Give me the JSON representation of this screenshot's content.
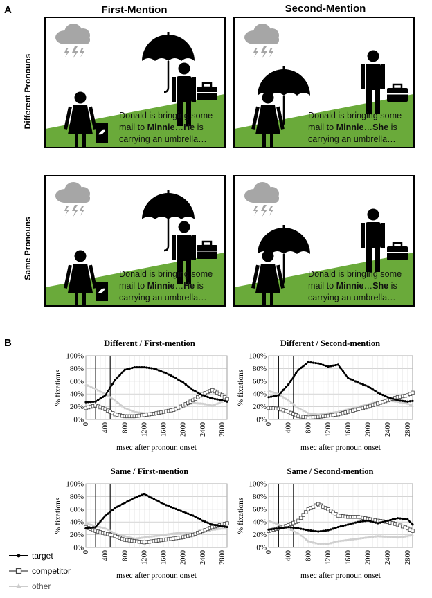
{
  "panels": {
    "a": "A",
    "b": "B"
  },
  "columns": [
    "First-Mention",
    "Second-Mention"
  ],
  "rows": [
    "Different Pronouns",
    "Same Pronouns"
  ],
  "scenes": [
    {
      "id": "diff-first",
      "pre": "Donald is bringing some mail to ",
      "name": "Minnie",
      "dots": "…",
      "pronoun": "He",
      "post": " is carrying an umbrella…",
      "umbrella": "man"
    },
    {
      "id": "diff-second",
      "pre": "Donald is bringing some mail to ",
      "name": "Minnie",
      "dots": "…",
      "pronoun": "She",
      "post": " is carrying an umbrella…",
      "umbrella": "woman"
    },
    {
      "id": "same-first",
      "pre": "Donald is bringing some mail to ",
      "name": "Minnie",
      "dots": "…",
      "pronoun": "He",
      "post": " is carrying an umbrella…",
      "umbrella": "man"
    },
    {
      "id": "same-second",
      "pre": "Donald is bringing some mail to ",
      "name": "Minnie",
      "dots": "…",
      "pronoun": "She",
      "post": " is carrying an umbrella…",
      "umbrella": "woman"
    }
  ],
  "colors": {
    "grass": "#6aaa3a",
    "cloud": "#a6a6a6",
    "target": "#000000",
    "competitor": "#555555",
    "other": "#cfcfcf"
  },
  "legend": [
    "target",
    "competitor",
    "other"
  ],
  "chart_data": [
    {
      "type": "line",
      "title": "Different / First-mention",
      "xlabel": "msec after pronoun onset",
      "ylabel": "% fixations",
      "xlim": [
        0,
        2900
      ],
      "ylim": [
        0,
        100
      ],
      "xticks": [
        0,
        400,
        800,
        1200,
        1600,
        2000,
        2400,
        2800
      ],
      "yticks": [
        "0%",
        "20%",
        "40%",
        "60%",
        "80%",
        "100%"
      ],
      "vlines": [
        200,
        500
      ],
      "series": [
        {
          "name": "target",
          "x": [
            0,
            200,
            400,
            600,
            800,
            1000,
            1200,
            1400,
            1600,
            1800,
            2000,
            2200,
            2400,
            2600,
            2800,
            2900
          ],
          "values": [
            27,
            28,
            38,
            62,
            78,
            82,
            82,
            80,
            74,
            67,
            58,
            46,
            38,
            33,
            30,
            28
          ]
        },
        {
          "name": "competitor",
          "x": [
            0,
            200,
            400,
            600,
            800,
            1000,
            1200,
            1400,
            1600,
            1800,
            2000,
            2200,
            2400,
            2600,
            2800,
            2900
          ],
          "values": [
            18,
            22,
            16,
            8,
            5,
            5,
            7,
            9,
            12,
            15,
            22,
            30,
            40,
            46,
            38,
            32
          ]
        },
        {
          "name": "other",
          "x": [
            0,
            200,
            400,
            600,
            800,
            1000,
            1200,
            1400,
            1600,
            1800,
            2000,
            2200,
            2400,
            2600,
            2800,
            2900
          ],
          "values": [
            55,
            48,
            40,
            30,
            18,
            12,
            10,
            10,
            12,
            16,
            22,
            26,
            25,
            22,
            28,
            36
          ]
        }
      ]
    },
    {
      "type": "line",
      "title": "Different / Second-mention",
      "xlabel": "msec after pronoun onset",
      "ylabel": "% fixations",
      "xlim": [
        0,
        2900
      ],
      "ylim": [
        0,
        100
      ],
      "xticks": [
        0,
        400,
        800,
        1200,
        1600,
        2000,
        2400,
        2800
      ],
      "yticks": [
        "0%",
        "20%",
        "40%",
        "60%",
        "80%",
        "100%"
      ],
      "vlines": [
        200,
        500
      ],
      "series": [
        {
          "name": "target",
          "x": [
            0,
            200,
            400,
            600,
            800,
            1000,
            1200,
            1400,
            1600,
            1800,
            2000,
            2200,
            2400,
            2600,
            2800,
            2900
          ],
          "values": [
            35,
            38,
            55,
            78,
            90,
            88,
            83,
            86,
            65,
            58,
            52,
            42,
            35,
            30,
            28,
            29
          ]
        },
        {
          "name": "competitor",
          "x": [
            0,
            200,
            400,
            600,
            800,
            1000,
            1200,
            1400,
            1600,
            1800,
            2000,
            2200,
            2400,
            2600,
            2800,
            2900
          ],
          "values": [
            18,
            17,
            12,
            5,
            3,
            4,
            6,
            8,
            12,
            16,
            20,
            25,
            30,
            35,
            38,
            42
          ]
        },
        {
          "name": "other",
          "x": [
            0,
            200,
            400,
            600,
            800,
            1000,
            1200,
            1400,
            1600,
            1800,
            2000,
            2200,
            2400,
            2600,
            2800,
            2900
          ],
          "values": [
            45,
            40,
            30,
            18,
            10,
            8,
            10,
            12,
            16,
            20,
            24,
            28,
            30,
            28,
            25,
            22
          ]
        }
      ]
    },
    {
      "type": "line",
      "title": "Same / First-mention",
      "xlabel": "msec after pronoun onset",
      "ylabel": "% fixations",
      "xlim": [
        0,
        2900
      ],
      "ylim": [
        0,
        100
      ],
      "xticks": [
        0,
        400,
        800,
        1200,
        1600,
        2000,
        2400,
        2800
      ],
      "yticks": [
        "0%",
        "20%",
        "40%",
        "60%",
        "80%",
        "100%"
      ],
      "vlines": [
        200,
        500
      ],
      "series": [
        {
          "name": "target",
          "x": [
            0,
            200,
            400,
            600,
            800,
            1000,
            1200,
            1400,
            1600,
            1800,
            2000,
            2200,
            2400,
            2600,
            2800,
            2900
          ],
          "values": [
            30,
            32,
            50,
            62,
            70,
            78,
            84,
            76,
            68,
            62,
            56,
            50,
            42,
            36,
            33,
            32
          ]
        },
        {
          "name": "competitor",
          "x": [
            0,
            200,
            400,
            600,
            800,
            1000,
            1200,
            1400,
            1600,
            1800,
            2000,
            2200,
            2400,
            2600,
            2800,
            2900
          ],
          "values": [
            32,
            26,
            22,
            18,
            12,
            10,
            8,
            10,
            12,
            14,
            16,
            20,
            26,
            32,
            36,
            38
          ]
        },
        {
          "name": "other",
          "x": [
            0,
            200,
            400,
            600,
            800,
            1000,
            1200,
            1400,
            1600,
            1800,
            2000,
            2200,
            2400,
            2600,
            2800,
            2900
          ],
          "values": [
            38,
            34,
            30,
            22,
            18,
            14,
            16,
            18,
            20,
            22,
            24,
            22,
            24,
            28,
            30,
            30
          ]
        }
      ]
    },
    {
      "type": "line",
      "title": "Same / Second-mention",
      "xlabel": "msec after pronoun onset",
      "ylabel": "% fixations",
      "xlim": [
        0,
        2900
      ],
      "ylim": [
        0,
        100
      ],
      "xticks": [
        0,
        400,
        800,
        1200,
        1600,
        2000,
        2400,
        2800
      ],
      "yticks": [
        "0%",
        "20%",
        "40%",
        "60%",
        "80%",
        "100%"
      ],
      "vlines": [
        200,
        500
      ],
      "series": [
        {
          "name": "target",
          "x": [
            0,
            200,
            400,
            600,
            800,
            1000,
            1200,
            1400,
            1600,
            1800,
            2000,
            2200,
            2400,
            2600,
            2800,
            2900
          ],
          "values": [
            28,
            30,
            32,
            30,
            27,
            25,
            27,
            32,
            36,
            40,
            42,
            38,
            42,
            46,
            44,
            36
          ]
        },
        {
          "name": "competitor",
          "x": [
            0,
            200,
            400,
            600,
            800,
            1000,
            1200,
            1400,
            1600,
            1800,
            2000,
            2200,
            2400,
            2600,
            2800,
            2900
          ],
          "values": [
            26,
            30,
            35,
            42,
            60,
            68,
            60,
            50,
            48,
            48,
            45,
            42,
            40,
            36,
            30,
            26
          ]
        },
        {
          "name": "other",
          "x": [
            0,
            200,
            400,
            600,
            800,
            1000,
            1200,
            1400,
            1600,
            1800,
            2000,
            2200,
            2400,
            2600,
            2800,
            2900
          ],
          "values": [
            42,
            36,
            30,
            22,
            10,
            6,
            6,
            10,
            12,
            14,
            16,
            18,
            17,
            16,
            18,
            20
          ]
        }
      ]
    }
  ]
}
